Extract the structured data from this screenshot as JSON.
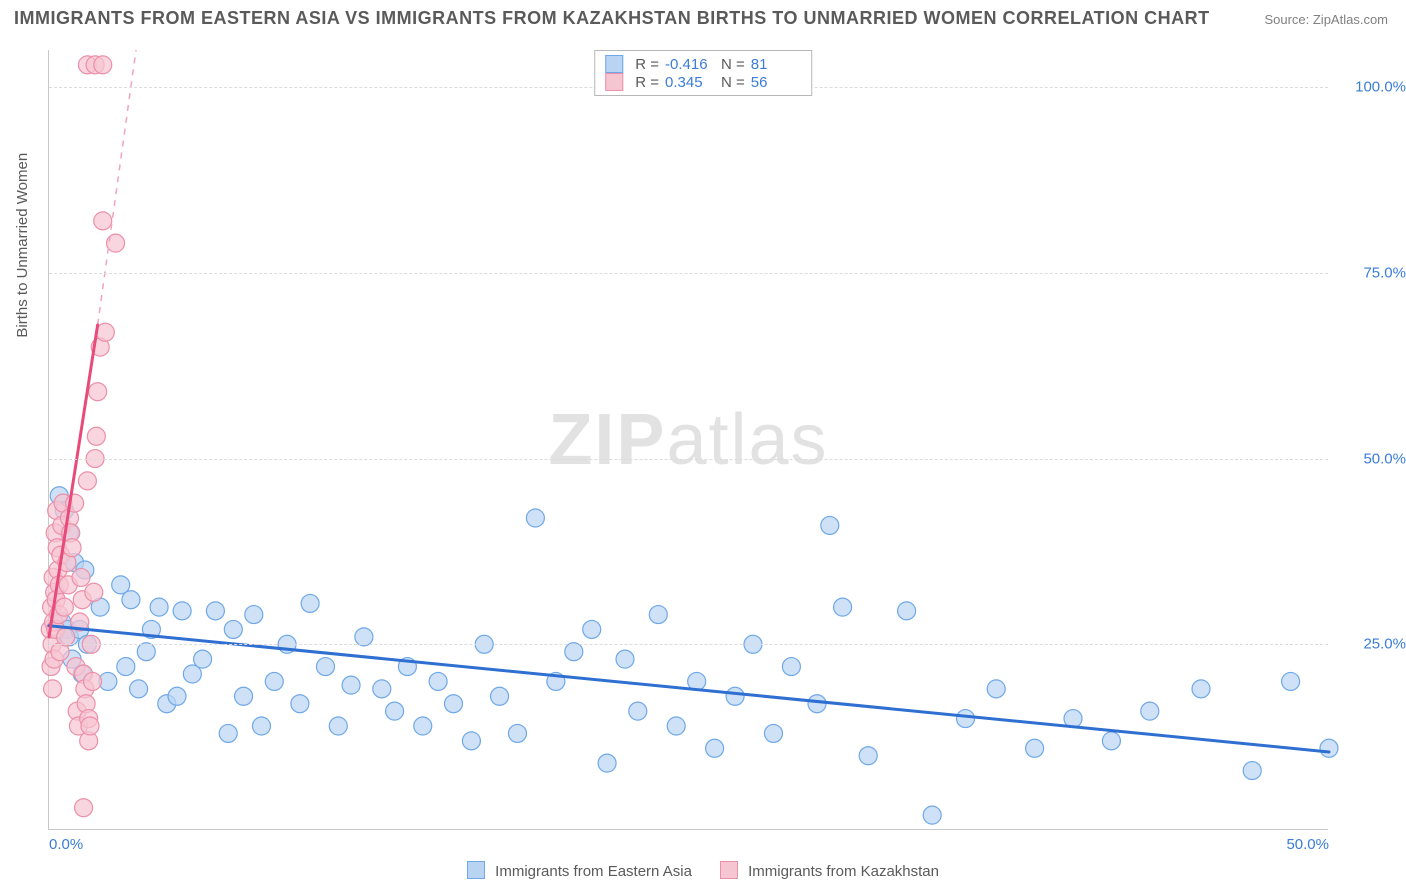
{
  "title": "IMMIGRANTS FROM EASTERN ASIA VS IMMIGRANTS FROM KAZAKHSTAN BIRTHS TO UNMARRIED WOMEN CORRELATION CHART",
  "source_label": "Source: ZipAtlas.com",
  "watermark_bold": "ZIP",
  "watermark_light": "atlas",
  "ylabel": "Births to Unmarried Women",
  "chart": {
    "type": "scatter",
    "xlim": [
      0,
      50
    ],
    "ylim": [
      0,
      105
    ],
    "xtick_labels": [
      "0.0%",
      "50.0%"
    ],
    "xtick_positions": [
      0,
      50
    ],
    "ytick_labels": [
      "25.0%",
      "50.0%",
      "75.0%",
      "100.0%"
    ],
    "ytick_positions": [
      25,
      50,
      75,
      100
    ],
    "background_color": "#ffffff",
    "grid_color": "#dcdcdc",
    "axis_color": "#c8c8c8",
    "tick_label_color": "#3b7dd8",
    "series": [
      {
        "name": "Immigrants from Eastern Asia",
        "color_fill": "#b9d4f3",
        "color_stroke": "#6fa8e8",
        "marker_radius": 9,
        "marker_opacity": 0.7,
        "R_label": "R =",
        "R_value": "-0.416",
        "N_label": "N =",
        "N_value": "81",
        "trend": {
          "x1": 0,
          "y1": 27.5,
          "x2": 50,
          "y2": 10.5,
          "color": "#2e6fd1",
          "width": 3
        },
        "points": [
          [
            0.4,
            45
          ],
          [
            0.5,
            28
          ],
          [
            0.6,
            43
          ],
          [
            0.7,
            27
          ],
          [
            0.8,
            26
          ],
          [
            0.8,
            40
          ],
          [
            0.9,
            23
          ],
          [
            1.0,
            36
          ],
          [
            1.2,
            27
          ],
          [
            1.3,
            21
          ],
          [
            1.4,
            35
          ],
          [
            1.5,
            25
          ],
          [
            2.0,
            30
          ],
          [
            2.3,
            20
          ],
          [
            2.8,
            33
          ],
          [
            3.0,
            22
          ],
          [
            3.2,
            31
          ],
          [
            3.5,
            19
          ],
          [
            3.8,
            24
          ],
          [
            4.0,
            27
          ],
          [
            4.3,
            30
          ],
          [
            4.6,
            17
          ],
          [
            5.0,
            18
          ],
          [
            5.2,
            29.5
          ],
          [
            5.6,
            21
          ],
          [
            6.0,
            23
          ],
          [
            6.5,
            29.5
          ],
          [
            7.0,
            13
          ],
          [
            7.2,
            27
          ],
          [
            7.6,
            18
          ],
          [
            8.0,
            29
          ],
          [
            8.3,
            14
          ],
          [
            8.8,
            20
          ],
          [
            9.3,
            25
          ],
          [
            9.8,
            17
          ],
          [
            10.2,
            30.5
          ],
          [
            10.8,
            22
          ],
          [
            11.3,
            14
          ],
          [
            11.8,
            19.5
          ],
          [
            12.3,
            26
          ],
          [
            13.0,
            19
          ],
          [
            13.5,
            16
          ],
          [
            14.0,
            22
          ],
          [
            14.6,
            14
          ],
          [
            15.2,
            20
          ],
          [
            15.8,
            17
          ],
          [
            16.5,
            12
          ],
          [
            17.0,
            25
          ],
          [
            17.6,
            18
          ],
          [
            18.3,
            13
          ],
          [
            19.0,
            42
          ],
          [
            19.8,
            20
          ],
          [
            20.5,
            24
          ],
          [
            21.2,
            27
          ],
          [
            21.8,
            9
          ],
          [
            22.5,
            23
          ],
          [
            23.0,
            16
          ],
          [
            23.8,
            29
          ],
          [
            24.5,
            14
          ],
          [
            25.3,
            20
          ],
          [
            26.0,
            11
          ],
          [
            26.8,
            18
          ],
          [
            27.5,
            25
          ],
          [
            28.3,
            13
          ],
          [
            29.0,
            22
          ],
          [
            30.5,
            41
          ],
          [
            30.0,
            17
          ],
          [
            31.0,
            30
          ],
          [
            32.0,
            10
          ],
          [
            33.5,
            29.5
          ],
          [
            34.5,
            2
          ],
          [
            35.8,
            15
          ],
          [
            37.0,
            19
          ],
          [
            38.5,
            11
          ],
          [
            40.0,
            15
          ],
          [
            41.5,
            12
          ],
          [
            43.0,
            16
          ],
          [
            45.0,
            19
          ],
          [
            47.0,
            8
          ],
          [
            48.5,
            20
          ],
          [
            50.0,
            11
          ]
        ]
      },
      {
        "name": "Immigrants from Kazakhstan",
        "color_fill": "#f6c5d2",
        "color_stroke": "#ec8fa8",
        "marker_radius": 9,
        "marker_opacity": 0.7,
        "R_label": "R =",
        "R_value": " 0.345",
        "N_label": "N =",
        "N_value": "56",
        "trend": {
          "x1": 0,
          "y1": 26,
          "x2": 1.9,
          "y2": 68,
          "color": "#e84b7a",
          "width": 3
        },
        "trend_dash": {
          "x1": 1.9,
          "y1": 68,
          "x2": 3.4,
          "y2": 105,
          "color": "#f2a4bc",
          "width": 1.5
        },
        "points": [
          [
            0.05,
            27
          ],
          [
            0.08,
            22
          ],
          [
            0.1,
            30
          ],
          [
            0.12,
            25
          ],
          [
            0.14,
            19
          ],
          [
            0.16,
            34
          ],
          [
            0.18,
            28
          ],
          [
            0.2,
            23
          ],
          [
            0.22,
            32
          ],
          [
            0.24,
            40
          ],
          [
            0.26,
            27
          ],
          [
            0.28,
            31
          ],
          [
            0.3,
            43
          ],
          [
            0.32,
            38
          ],
          [
            0.35,
            35
          ],
          [
            0.38,
            29
          ],
          [
            0.4,
            33
          ],
          [
            0.43,
            24
          ],
          [
            0.46,
            37
          ],
          [
            0.5,
            41
          ],
          [
            0.55,
            44
          ],
          [
            0.6,
            30
          ],
          [
            0.65,
            26
          ],
          [
            0.7,
            36
          ],
          [
            0.75,
            33
          ],
          [
            0.8,
            42
          ],
          [
            0.85,
            40
          ],
          [
            0.9,
            38
          ],
          [
            1.0,
            44
          ],
          [
            1.05,
            22
          ],
          [
            1.1,
            16
          ],
          [
            1.15,
            14
          ],
          [
            1.2,
            28
          ],
          [
            1.25,
            34
          ],
          [
            1.3,
            31
          ],
          [
            1.35,
            21
          ],
          [
            1.35,
            3
          ],
          [
            1.4,
            19
          ],
          [
            1.45,
            17
          ],
          [
            1.5,
            47
          ],
          [
            1.55,
            15
          ],
          [
            1.55,
            12
          ],
          [
            1.6,
            14
          ],
          [
            1.65,
            25
          ],
          [
            1.7,
            20
          ],
          [
            1.75,
            32
          ],
          [
            1.8,
            50
          ],
          [
            1.85,
            53
          ],
          [
            1.9,
            59
          ],
          [
            2.0,
            65
          ],
          [
            2.2,
            67
          ],
          [
            2.1,
            82
          ],
          [
            1.5,
            103
          ],
          [
            1.8,
            103
          ],
          [
            2.1,
            103
          ],
          [
            2.6,
            79
          ]
        ]
      }
    ]
  },
  "legend": {
    "series1_label": "Immigrants from Eastern Asia",
    "series2_label": "Immigrants from Kazakhstan"
  }
}
